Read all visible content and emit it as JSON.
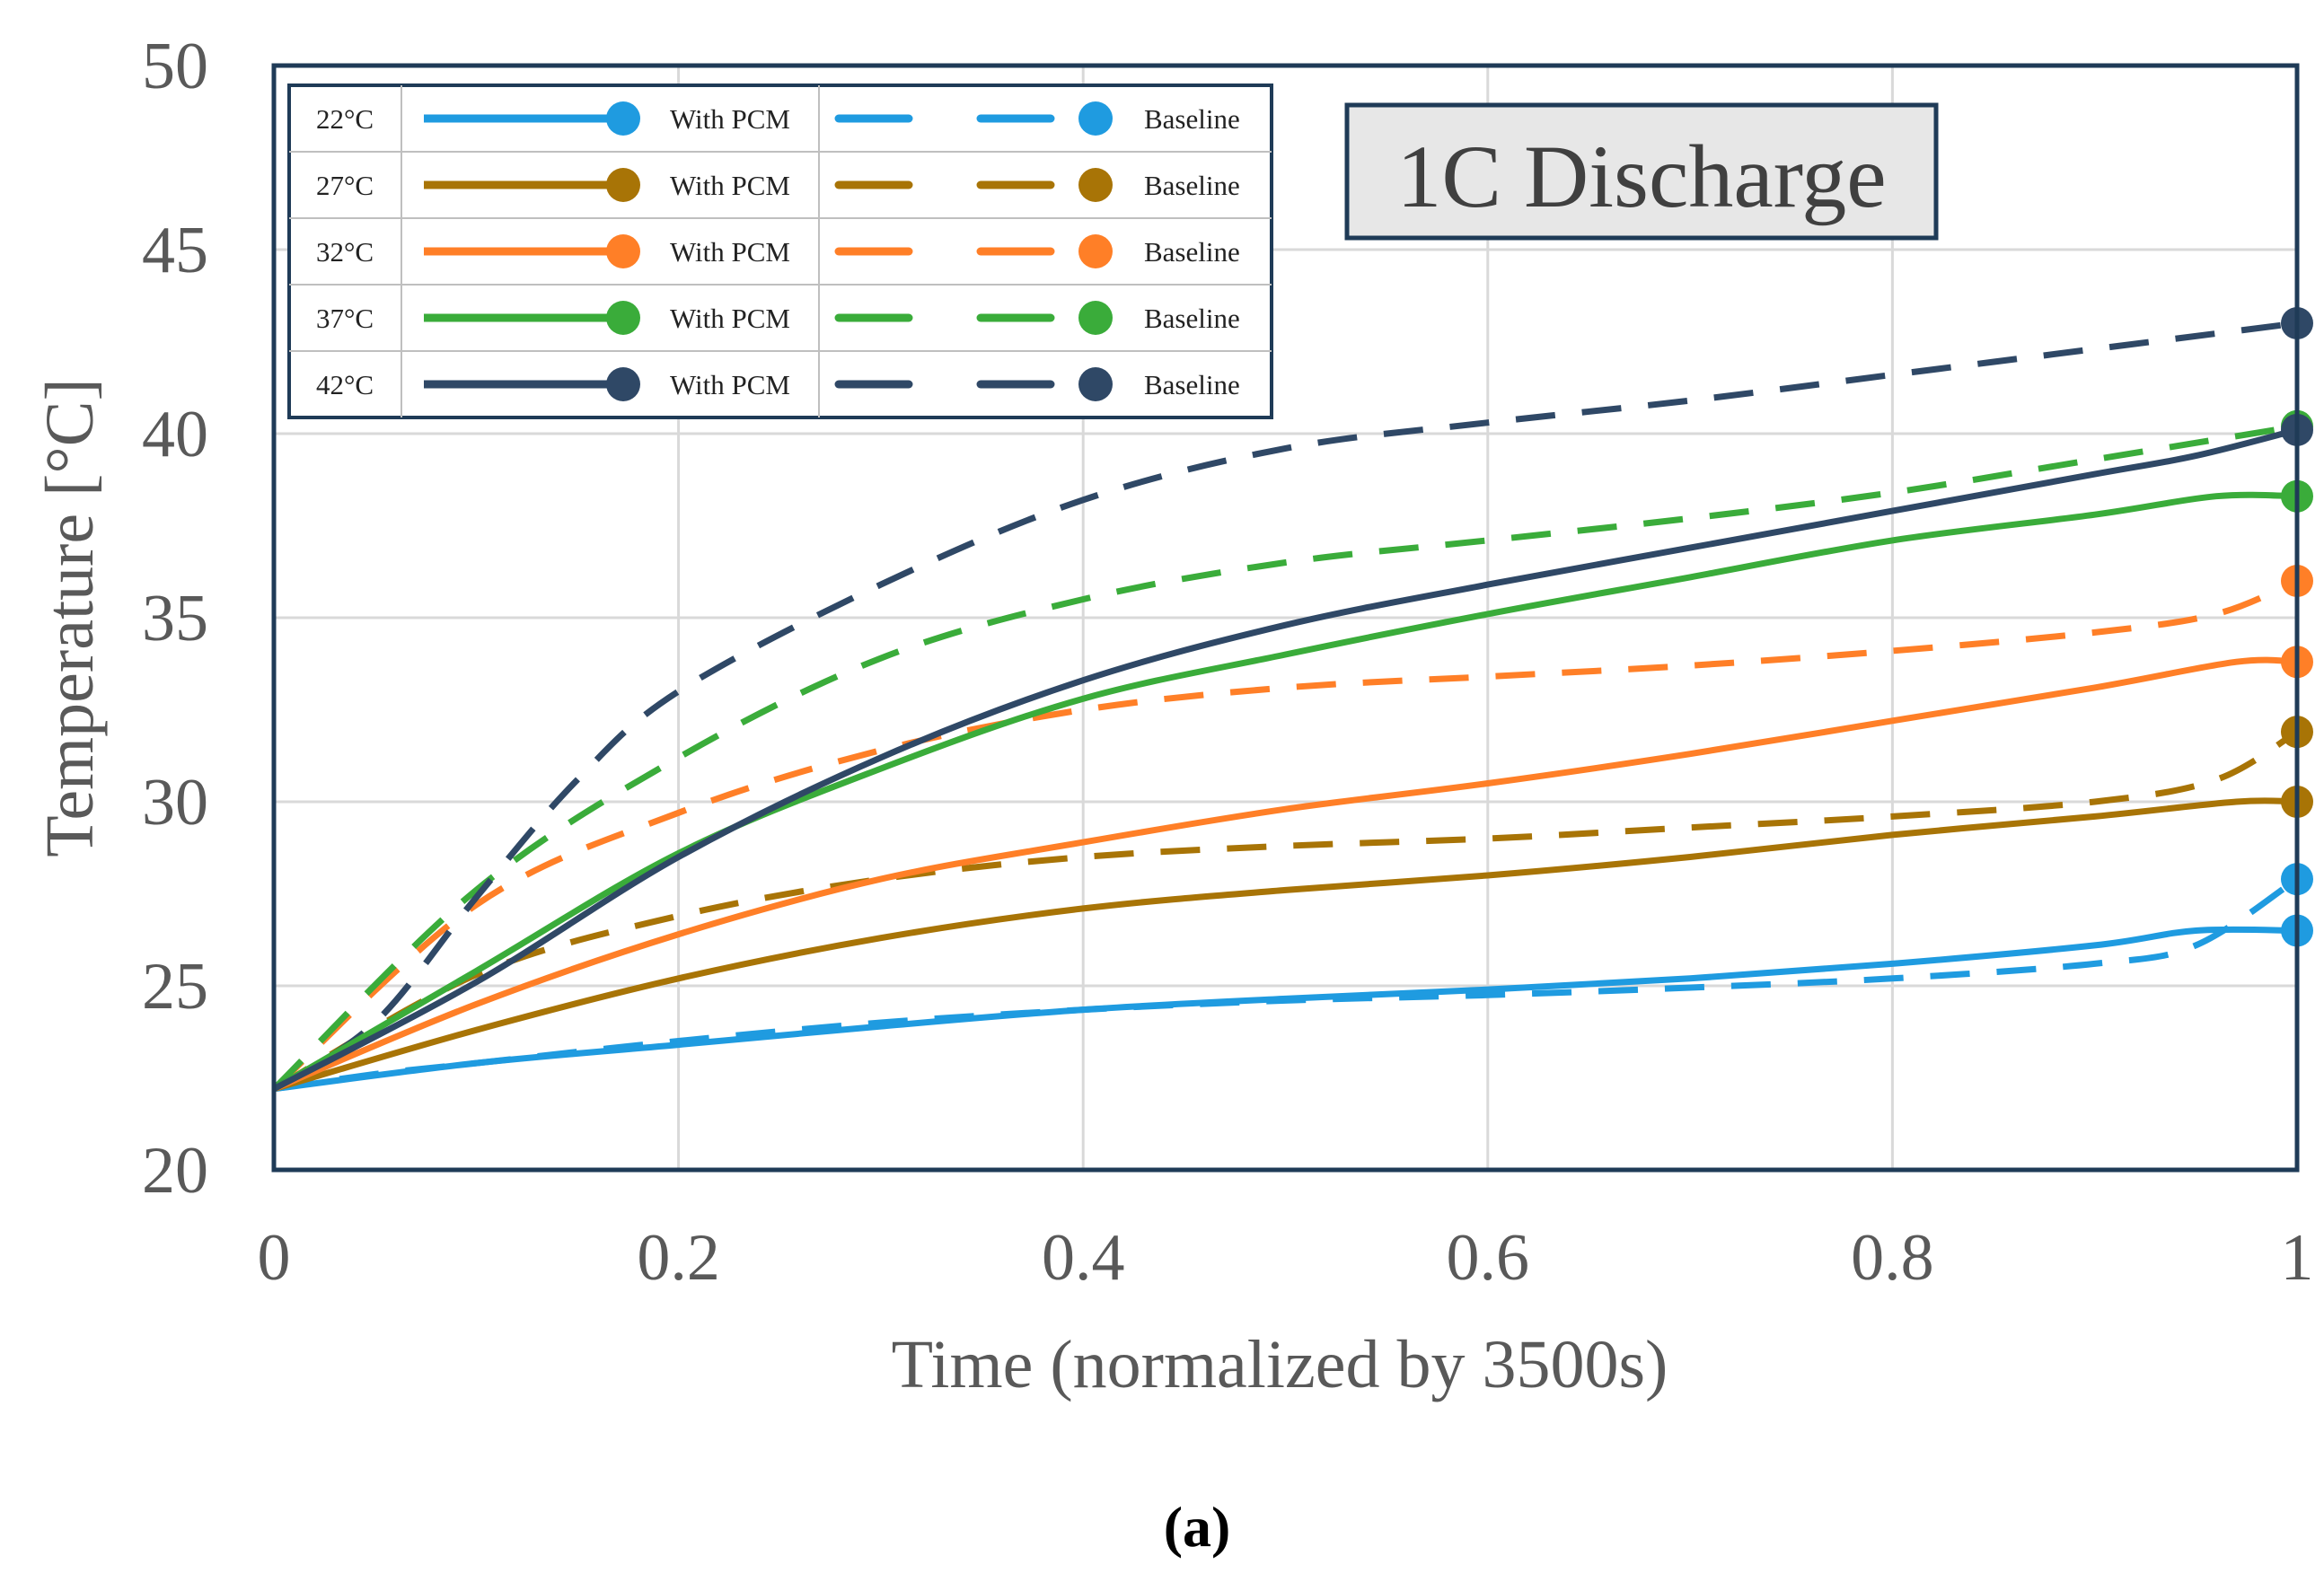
{
  "chart_data": {
    "type": "line",
    "title": "1C Discharge",
    "xlabel": "Time (normalized by 3500s)",
    "ylabel": "Temperature [°C]",
    "xlim": [
      0,
      1
    ],
    "ylim": [
      20,
      50
    ],
    "x_ticks": [
      0,
      0.2,
      0.4,
      0.6,
      0.8,
      1
    ],
    "x_tick_labels": [
      "0",
      "0.2",
      "0.4",
      "0.6",
      "0.8",
      "1"
    ],
    "y_ticks": [
      20,
      25,
      30,
      35,
      40,
      45,
      50
    ],
    "y_tick_labels": [
      "20",
      "25",
      "30",
      "35",
      "40",
      "45",
      "50"
    ],
    "grid": true,
    "legend_position": "top-left",
    "caption": "(a)",
    "colors": {
      "c22": "#1f9be0",
      "c27": "#a87406",
      "c32": "#ff7f27",
      "c37": "#3aac3a",
      "c42": "#2f4866",
      "frame": "#1f3b57",
      "grid": "#d9d9d9"
    },
    "legend_rows": [
      {
        "ambient": "22°C",
        "pcm_label": "With PCM",
        "baseline_label": "Baseline",
        "color_key": "c22"
      },
      {
        "ambient": "27°C",
        "pcm_label": "With PCM",
        "baseline_label": "Baseline",
        "color_key": "c27"
      },
      {
        "ambient": "32°C",
        "pcm_label": "With PCM",
        "baseline_label": "Baseline",
        "color_key": "c32"
      },
      {
        "ambient": "37°C",
        "pcm_label": "With PCM",
        "baseline_label": "Baseline",
        "color_key": "c37"
      },
      {
        "ambient": "42°C",
        "pcm_label": "With PCM",
        "baseline_label": "Baseline",
        "color_key": "c42"
      }
    ],
    "series": [
      {
        "name": "22°C With PCM",
        "color_key": "c22",
        "style": "solid",
        "x": [
          0,
          0.1,
          0.2,
          0.3,
          0.4,
          0.5,
          0.6,
          0.7,
          0.8,
          0.9,
          0.95,
          1
        ],
        "y": [
          22.2,
          22.9,
          23.4,
          23.9,
          24.35,
          24.65,
          24.9,
          25.2,
          25.6,
          26.1,
          26.5,
          26.5
        ]
      },
      {
        "name": "22°C Baseline",
        "color_key": "c22",
        "style": "dashed",
        "x": [
          0,
          0.05,
          0.1,
          0.2,
          0.3,
          0.4,
          0.5,
          0.6,
          0.7,
          0.8,
          0.9,
          0.95,
          1
        ],
        "y": [
          22.2,
          22.6,
          22.9,
          23.5,
          24.0,
          24.35,
          24.6,
          24.75,
          24.95,
          25.2,
          25.6,
          26.1,
          27.9
        ]
      },
      {
        "name": "27°C With PCM",
        "color_key": "c27",
        "style": "solid",
        "x": [
          0,
          0.1,
          0.2,
          0.3,
          0.4,
          0.5,
          0.6,
          0.7,
          0.8,
          0.9,
          0.97,
          1
        ],
        "y": [
          22.2,
          23.8,
          25.2,
          26.3,
          27.1,
          27.6,
          28.0,
          28.5,
          29.1,
          29.6,
          30.0,
          30.0
        ]
      },
      {
        "name": "27°C Baseline",
        "color_key": "c27",
        "style": "dashed",
        "x": [
          0,
          0.1,
          0.2,
          0.3,
          0.4,
          0.5,
          0.6,
          0.7,
          0.8,
          0.9,
          0.96,
          1
        ],
        "y": [
          22.2,
          25.3,
          26.9,
          27.9,
          28.5,
          28.8,
          29.0,
          29.3,
          29.6,
          30.0,
          30.6,
          31.9
        ]
      },
      {
        "name": "32°C With PCM",
        "color_key": "c32",
        "style": "solid",
        "x": [
          0,
          0.1,
          0.2,
          0.3,
          0.4,
          0.5,
          0.6,
          0.7,
          0.8,
          0.9,
          0.97,
          1
        ],
        "y": [
          22.2,
          24.5,
          26.4,
          27.9,
          28.9,
          29.8,
          30.5,
          31.3,
          32.2,
          33.1,
          33.8,
          33.8
        ]
      },
      {
        "name": "32°C Baseline",
        "color_key": "c32",
        "style": "dashed",
        "x": [
          0,
          0.1,
          0.2,
          0.3,
          0.4,
          0.5,
          0.6,
          0.7,
          0.8,
          0.9,
          0.96,
          1
        ],
        "y": [
          22.2,
          27.2,
          29.7,
          31.4,
          32.5,
          33.1,
          33.4,
          33.7,
          34.1,
          34.6,
          35.1,
          36.0
        ]
      },
      {
        "name": "37°C With PCM",
        "color_key": "c37",
        "style": "solid",
        "x": [
          0,
          0.1,
          0.2,
          0.3,
          0.4,
          0.5,
          0.6,
          0.7,
          0.8,
          0.9,
          0.96,
          1
        ],
        "y": [
          22.2,
          25.4,
          28.6,
          30.9,
          32.8,
          34.0,
          35.1,
          36.1,
          37.1,
          37.8,
          38.3,
          38.3
        ]
      },
      {
        "name": "37°C Baseline",
        "color_key": "c37",
        "style": "dashed",
        "x": [
          0,
          0.1,
          0.2,
          0.3,
          0.4,
          0.5,
          0.6,
          0.7,
          0.8,
          0.9,
          1
        ],
        "y": [
          22.2,
          27.6,
          31.2,
          33.9,
          35.5,
          36.5,
          37.1,
          37.7,
          38.4,
          39.3,
          40.2
        ]
      },
      {
        "name": "42°C With PCM",
        "color_key": "c42",
        "style": "solid",
        "x": [
          0,
          0.1,
          0.2,
          0.3,
          0.4,
          0.5,
          0.6,
          0.7,
          0.8,
          0.9,
          0.95,
          1
        ],
        "y": [
          22.2,
          25.1,
          28.5,
          31.2,
          33.3,
          34.8,
          35.9,
          36.9,
          37.9,
          38.9,
          39.4,
          40.1
        ]
      },
      {
        "name": "42°C Baseline",
        "color_key": "c42",
        "style": "dashed",
        "x": [
          0,
          0.05,
          0.1,
          0.15,
          0.2,
          0.3,
          0.4,
          0.5,
          0.6,
          0.7,
          0.8,
          0.9,
          1
        ],
        "y": [
          22.2,
          24.0,
          27.4,
          30.6,
          33.0,
          35.9,
          38.2,
          39.6,
          40.3,
          40.9,
          41.6,
          42.3,
          43.0
        ]
      }
    ]
  }
}
